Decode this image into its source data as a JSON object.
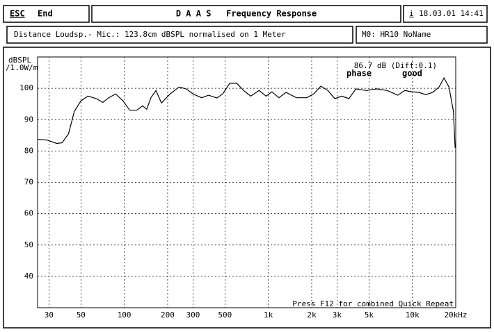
{
  "header": {
    "esc_key": "ESC",
    "esc_label": "End",
    "title": "D A A S   Frequency Response",
    "info_key": "i",
    "datetime": "18.03.01 14:41",
    "measurement": "Distance Loudsp.- Mic.: 123.8cm dBSPL normalised on 1 Meter",
    "memory": "M0: HR10 NoName"
  },
  "chart_data": {
    "type": "line",
    "log_x": true,
    "grid": true,
    "y_label": "dBSPL",
    "y_label2": "/1.0W/m",
    "annotations": [
      "86.7 dB (Diff:0.1)",
      "Press F12 for combined Quick Repeat"
    ],
    "phase_label": "phase",
    "phase_status": "good",
    "xlim": [
      25,
      20000
    ],
    "ylim": [
      30,
      110
    ],
    "xticks": [
      30,
      50,
      100,
      200,
      300,
      500,
      {
        "value": 1000,
        "label": "1k"
      },
      {
        "value": 2000,
        "label": "2k"
      },
      {
        "value": 3000,
        "label": "3k"
      },
      {
        "value": 5000,
        "label": "5k"
      },
      {
        "value": 10000,
        "label": "10k"
      },
      {
        "value": 20000,
        "label": "20kHz"
      }
    ],
    "yticks": [
      40,
      50,
      60,
      70,
      80,
      90,
      100
    ],
    "series": [
      {
        "name": "Frequency Response",
        "color": "#000000",
        "x": [
          25,
          29,
          34,
          37,
          41,
          45,
          50,
          56,
          64,
          71,
          78,
          87,
          98,
          109,
          122,
          134,
          143,
          153,
          166,
          181,
          208,
          240,
          269,
          300,
          344,
          385,
          440,
          482,
          540,
          603,
          674,
          755,
          863,
          966,
          1059,
          1184,
          1325,
          1564,
          1850,
          2069,
          2314,
          2589,
          2896,
          3240,
          3624,
          4055,
          4793,
          5666,
          6698,
          7917,
          8860,
          9910,
          11090,
          12400,
          13870,
          15320,
          16600,
          17960,
          19280,
          19800
        ],
        "values": [
          83.7,
          83.5,
          82.4,
          82.6,
          85.5,
          92.6,
          96,
          97.5,
          96.7,
          95.5,
          97,
          98.2,
          96,
          93,
          93,
          94.4,
          93.3,
          97,
          99.3,
          95.3,
          98.2,
          100.4,
          99.8,
          98.2,
          97,
          97.8,
          96.9,
          98.2,
          101.6,
          101.6,
          99.3,
          97.5,
          99.3,
          97.5,
          98.9,
          97,
          98.7,
          97,
          97,
          98.2,
          100.7,
          99.3,
          96.7,
          97.5,
          96.7,
          99.8,
          99.3,
          99.8,
          99.3,
          97.8,
          99.3,
          98.9,
          98.7,
          98,
          98.7,
          100.4,
          103.3,
          100.4,
          92.6,
          81
        ]
      }
    ]
  }
}
